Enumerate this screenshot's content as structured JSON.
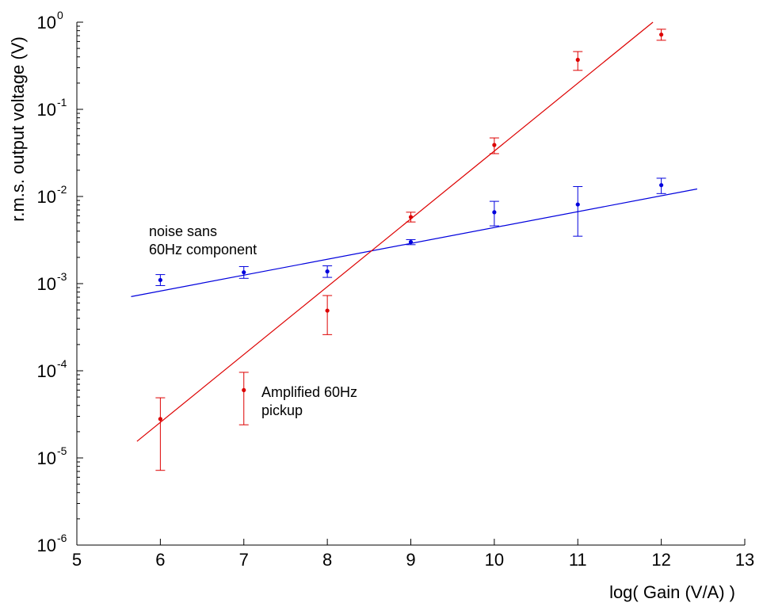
{
  "chart_data": {
    "type": "scatter",
    "title": "",
    "xlabel": "log( Gain (V/A) )",
    "ylabel": "r.m.s. output voltage (V)",
    "xlim": [
      5,
      13
    ],
    "ylim": [
      1e-06,
      1
    ],
    "yscale": "log",
    "grid": false,
    "x_ticks": [
      5,
      6,
      7,
      8,
      9,
      10,
      11,
      12,
      13
    ],
    "y_ticks": [
      {
        "base": "10",
        "exp": "0",
        "value": 1
      },
      {
        "base": "10",
        "exp": "-1",
        "value": 0.1
      },
      {
        "base": "10",
        "exp": "-2",
        "value": 0.01
      },
      {
        "base": "10",
        "exp": "-3",
        "value": 0.001
      },
      {
        "base": "10",
        "exp": "-4",
        "value": 0.0001
      },
      {
        "base": "10",
        "exp": "-5",
        "value": 1e-05
      },
      {
        "base": "10",
        "exp": "-6",
        "value": 1e-06
      }
    ],
    "series": [
      {
        "color": "#0000dd",
        "x": [
          6,
          7,
          8,
          9,
          10,
          11,
          12
        ],
        "y": [
          0.0011,
          0.00135,
          0.00138,
          0.003,
          0.0066,
          0.0081,
          0.0135
        ],
        "y_low": [
          0.00095,
          0.00115,
          0.00118,
          0.0028,
          0.0046,
          0.0035,
          0.0108
        ],
        "y_high": [
          0.00127,
          0.00157,
          0.0016,
          0.0032,
          0.0088,
          0.013,
          0.0162
        ],
        "fit_line": {
          "x": [
            5.65,
            12.43
          ],
          "y": [
            0.00071,
            0.0122
          ]
        }
      },
      {
        "color": "#dd0000",
        "x": [
          6,
          7,
          8,
          9,
          10,
          11,
          12
        ],
        "y": [
          2.8e-05,
          6e-05,
          0.00049,
          0.0058,
          0.039,
          0.37,
          0.72
        ],
        "y_low": [
          7.2e-06,
          2.4e-05,
          0.00026,
          0.0051,
          0.031,
          0.28,
          0.62
        ],
        "y_high": [
          4.9e-05,
          9.6e-05,
          0.00073,
          0.0066,
          0.047,
          0.46,
          0.83
        ],
        "fit_line": {
          "x": [
            5.72,
            11.9
          ],
          "y": [
            1.55e-05,
            1.0
          ]
        }
      }
    ],
    "annotations": [
      {
        "lines": [
          "noise sans",
          "60Hz component"
        ],
        "color": "#000000"
      },
      {
        "lines": [
          "Amplified 60Hz",
          "pickup"
        ],
        "color": "#000000"
      }
    ]
  }
}
